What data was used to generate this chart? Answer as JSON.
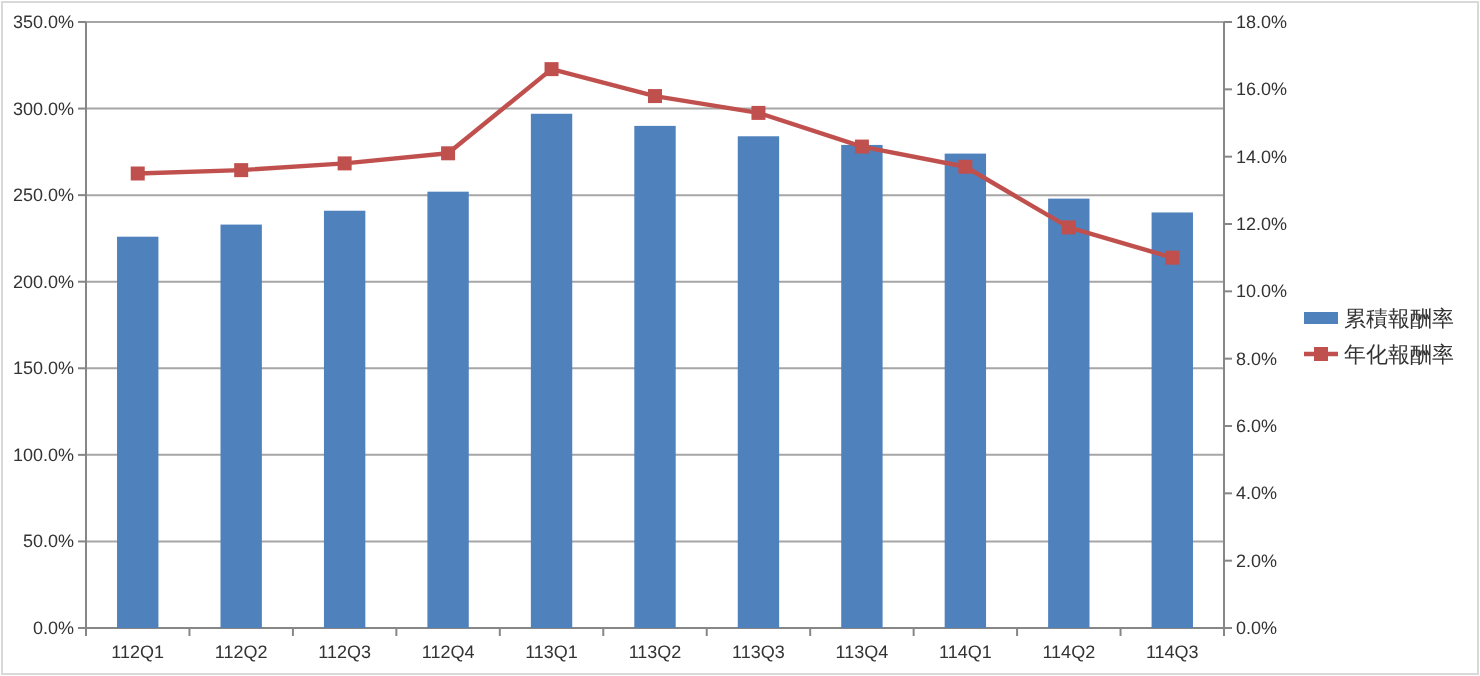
{
  "chart_data": {
    "type": "bar",
    "categories": [
      "112Q1",
      "112Q2",
      "112Q3",
      "112Q4",
      "113Q1",
      "113Q2",
      "113Q3",
      "113Q4",
      "114Q1",
      "114Q2",
      "114Q3"
    ],
    "series": [
      {
        "name": "累積報酬率",
        "color": "#4f81bd",
        "values": [
          226,
          233,
          241,
          252,
          297,
          290,
          284,
          279,
          274,
          248,
          240
        ]
      },
      {
        "name": "年化報酬率",
        "type": "line",
        "axis": "y2",
        "color": "#c0504d",
        "marker": "square",
        "values": [
          13.5,
          13.6,
          13.8,
          14.1,
          16.6,
          15.8,
          15.3,
          14.3,
          13.7,
          11.9,
          11.0
        ]
      }
    ],
    "ylim": [
      0,
      350
    ],
    "yticks": [
      {
        "value": 0,
        "label": "0.0%"
      },
      {
        "value": 50,
        "label": "50.0%"
      },
      {
        "value": 100,
        "label": "100.0%"
      },
      {
        "value": 150,
        "label": "150.0%"
      },
      {
        "value": 200,
        "label": "200.0%"
      },
      {
        "value": 250,
        "label": "250.0%"
      },
      {
        "value": 300,
        "label": "300.0%"
      },
      {
        "value": 350,
        "label": "350.0%"
      }
    ],
    "y2lim": [
      0,
      18
    ],
    "y2ticks": [
      {
        "value": 0,
        "label": "0.0%"
      },
      {
        "value": 2,
        "label": "2.0%"
      },
      {
        "value": 4,
        "label": "4.0%"
      },
      {
        "value": 6,
        "label": "6.0%"
      },
      {
        "value": 8,
        "label": "8.0%"
      },
      {
        "value": 10,
        "label": "10.0%"
      },
      {
        "value": 12,
        "label": "12.0%"
      },
      {
        "value": 14,
        "label": "14.0%"
      },
      {
        "value": 16,
        "label": "16.0%"
      },
      {
        "value": 18,
        "label": "18.0%"
      }
    ],
    "grid": "y",
    "legend": "right"
  }
}
